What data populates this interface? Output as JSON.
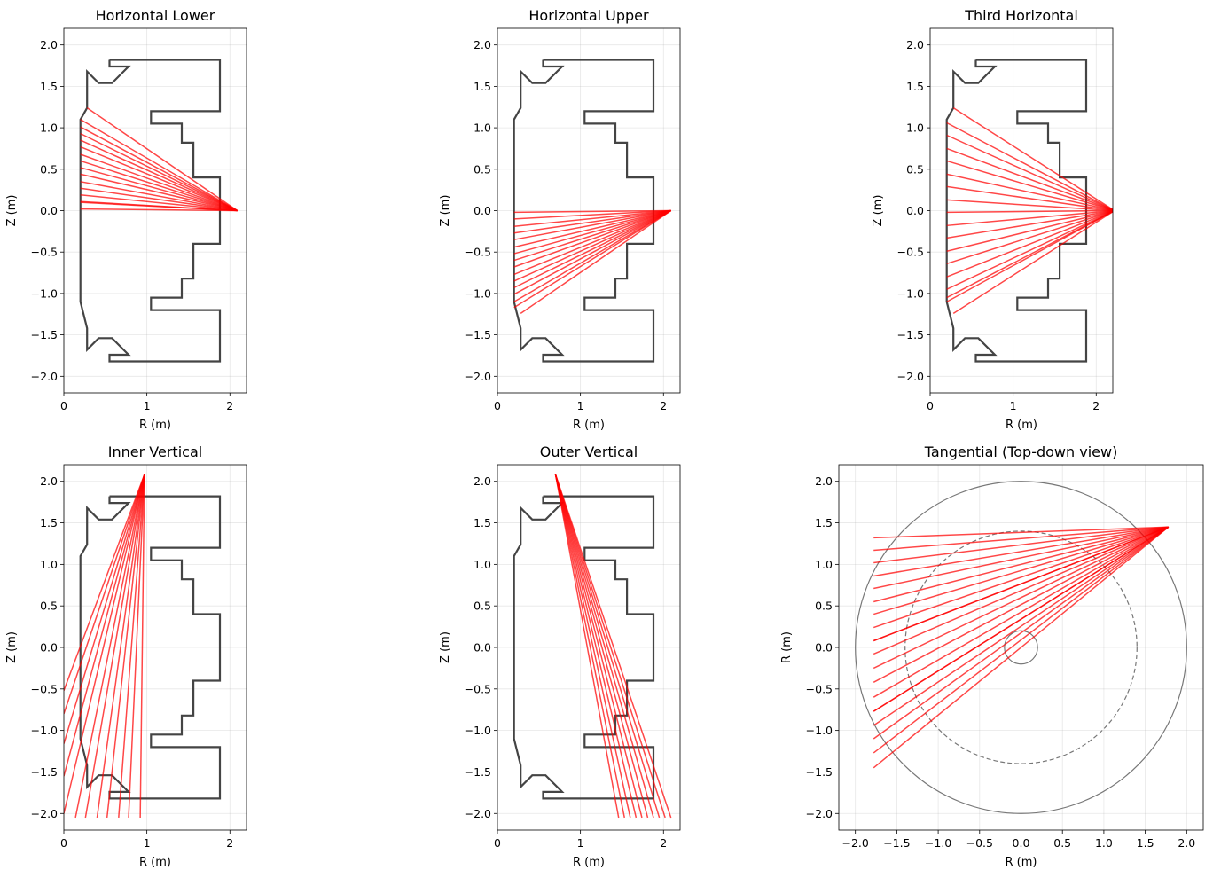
{
  "vessel_outline": {
    "r": [
      0.55,
      1.88,
      1.88,
      1.05,
      1.05,
      1.42,
      1.42,
      1.56,
      1.56,
      1.88,
      1.88,
      1.56,
      1.56,
      1.42,
      1.42,
      1.05,
      1.05,
      1.88,
      1.88,
      0.55,
      0.55,
      0.78,
      0.58,
      0.42,
      0.28,
      0.28,
      0.2,
      0.2,
      0.28,
      0.28,
      0.42,
      0.58,
      0.78,
      0.55,
      0.55
    ],
    "z": [
      1.82,
      1.82,
      1.2,
      1.2,
      1.05,
      1.05,
      0.82,
      0.82,
      0.4,
      0.4,
      -0.4,
      -0.4,
      -0.82,
      -0.82,
      -1.05,
      -1.05,
      -1.2,
      -1.2,
      -1.82,
      -1.82,
      -1.74,
      -1.74,
      -1.54,
      -1.54,
      -1.68,
      -1.42,
      -1.1,
      1.1,
      1.24,
      1.68,
      1.54,
      1.54,
      1.74,
      1.74,
      1.82
    ],
    "color": "#444444"
  },
  "ray_color": "#ff0000",
  "chart_data": [
    {
      "type": "line",
      "title": "Horizontal Lower",
      "xlabel": "R (m)",
      "ylabel": "Z (m)",
      "xlim": [
        0,
        2.2
      ],
      "ylim": [
        -2.2,
        2.2
      ],
      "xticks": [
        0,
        1,
        2
      ],
      "xtick_labels": [
        "0",
        "1",
        "2"
      ],
      "yticks": [
        2.0,
        1.5,
        1.0,
        0.5,
        0.0,
        -0.5,
        -1.0,
        -1.5,
        -2.0
      ],
      "ytick_labels": [
        "2.0",
        "1.5",
        "1.0",
        "0.5",
        "0.0",
        "−0.5",
        "−1.0",
        "−1.5",
        "−2.0"
      ],
      "grid": true,
      "show_vessel": true,
      "rays": {
        "origin": [
          2.09,
          0.0
        ],
        "end_r": [
          0.28,
          0.2,
          0.2,
          0.2,
          0.2,
          0.2,
          0.2,
          0.2,
          0.2,
          0.2,
          0.2,
          0.2,
          0.2,
          0.2,
          0.2,
          0.2
        ],
        "end_z": [
          1.24,
          1.1,
          1.01,
          0.93,
          0.85,
          0.77,
          0.68,
          0.6,
          0.52,
          0.44,
          0.35,
          0.27,
          0.19,
          0.11,
          0.02,
          0.1
        ]
      }
    },
    {
      "type": "line",
      "title": "Horizontal Upper",
      "xlabel": "R (m)",
      "ylabel": "Z (m)",
      "xlim": [
        0,
        2.2
      ],
      "ylim": [
        -2.2,
        2.2
      ],
      "xticks": [
        0,
        1,
        2
      ],
      "xtick_labels": [
        "0",
        "1",
        "2"
      ],
      "yticks": [
        2.0,
        1.5,
        1.0,
        0.5,
        0.0,
        -0.5,
        -1.0,
        -1.5,
        -2.0
      ],
      "ytick_labels": [
        "2.0",
        "1.5",
        "1.0",
        "0.5",
        "0.0",
        "−0.5",
        "−1.0",
        "−1.5",
        "−2.0"
      ],
      "grid": true,
      "show_vessel": true,
      "rays": {
        "origin": [
          2.09,
          0.0
        ],
        "end_r": [
          0.2,
          0.2,
          0.2,
          0.2,
          0.2,
          0.2,
          0.2,
          0.2,
          0.2,
          0.2,
          0.2,
          0.2,
          0.2,
          0.2,
          0.2,
          0.28
        ],
        "end_z": [
          -0.02,
          -0.1,
          -0.19,
          -0.27,
          -0.35,
          -0.44,
          -0.52,
          -0.6,
          -0.68,
          -0.77,
          -0.85,
          -0.93,
          -1.01,
          -1.1,
          -1.17,
          -1.24
        ]
      }
    },
    {
      "type": "line",
      "title": "Third Horizontal",
      "xlabel": "R (m)",
      "ylabel": "Z (m)",
      "xlim": [
        0,
        2.2
      ],
      "ylim": [
        -2.2,
        2.2
      ],
      "xticks": [
        0,
        1,
        2
      ],
      "xtick_labels": [
        "0",
        "1",
        "2"
      ],
      "yticks": [
        2.0,
        1.5,
        1.0,
        0.5,
        0.0,
        -0.5,
        -1.0,
        -1.5,
        -2.0
      ],
      "ytick_labels": [
        "2.0",
        "1.5",
        "1.0",
        "0.5",
        "0.0",
        "−0.5",
        "−1.0",
        "−1.5",
        "−2.0"
      ],
      "grid": true,
      "show_vessel": true,
      "rays": {
        "origin": [
          2.22,
          0.0
        ],
        "end_r": [
          0.28,
          0.2,
          0.2,
          0.2,
          0.2,
          0.2,
          0.2,
          0.2,
          0.2,
          0.2,
          0.2,
          0.2,
          0.2,
          0.2,
          0.2,
          0.2,
          0.2,
          0.28
        ],
        "end_z": [
          1.24,
          1.06,
          0.91,
          0.75,
          0.6,
          0.44,
          0.29,
          0.13,
          -0.02,
          -0.18,
          -0.33,
          -0.49,
          -0.64,
          -0.8,
          -0.95,
          -1.05,
          -1.1,
          -1.24
        ]
      }
    },
    {
      "type": "line",
      "title": "Inner Vertical",
      "xlabel": "R (m)",
      "ylabel": "Z (m)",
      "xlim": [
        0,
        2.2
      ],
      "ylim": [
        -2.2,
        2.2
      ],
      "xticks": [
        0,
        1,
        2
      ],
      "xtick_labels": [
        "0",
        "1",
        "2"
      ],
      "yticks": [
        2.0,
        1.5,
        1.0,
        0.5,
        0.0,
        -0.5,
        -1.0,
        -1.5,
        -2.0
      ],
      "ytick_labels": [
        "2.0",
        "1.5",
        "1.0",
        "0.5",
        "0.0",
        "−0.5",
        "−1.0",
        "−1.5",
        "−2.0"
      ],
      "grid": true,
      "show_vessel": true,
      "rays": {
        "origin": [
          0.97,
          2.08
        ],
        "end_r": [
          0.0,
          0.0,
          0.0,
          0.0,
          0.0,
          0.14,
          0.26,
          0.4,
          0.52,
          0.66,
          0.78,
          0.92
        ],
        "end_z": [
          -0.52,
          -0.8,
          -1.16,
          -1.55,
          -2.0,
          -2.05,
          -2.05,
          -2.05,
          -2.05,
          -2.05,
          -2.05,
          -2.05
        ]
      }
    },
    {
      "type": "line",
      "title": "Outer Vertical",
      "xlabel": "R (m)",
      "ylabel": "Z (m)",
      "xlim": [
        0,
        2.2
      ],
      "ylim": [
        -2.2,
        2.2
      ],
      "xticks": [
        0,
        1,
        2
      ],
      "xtick_labels": [
        "0",
        "1",
        "2"
      ],
      "yticks": [
        2.0,
        1.5,
        1.0,
        0.5,
        0.0,
        -0.5,
        -1.0,
        -1.5,
        -2.0
      ],
      "ytick_labels": [
        "2.0",
        "1.5",
        "1.0",
        "0.5",
        "0.0",
        "−0.5",
        "−1.0",
        "−1.5",
        "−2.0"
      ],
      "grid": true,
      "show_vessel": true,
      "rays": {
        "origin": [
          0.7,
          2.08
        ],
        "end_r": [
          1.46,
          1.53,
          1.6,
          1.67,
          1.74,
          1.81,
          1.88,
          1.95,
          2.02,
          2.09
        ],
        "end_z": [
          -2.05,
          -2.05,
          -2.05,
          -2.05,
          -2.05,
          -2.05,
          -2.05,
          -2.05,
          -2.05,
          -2.05
        ]
      }
    },
    {
      "type": "line",
      "title": "Tangential (Top-down view)",
      "xlabel": "R (m)",
      "ylabel": "R (m)",
      "xlim": [
        -2.2,
        2.2
      ],
      "ylim": [
        -2.2,
        2.2
      ],
      "xticks": [
        -2.0,
        -1.5,
        -1.0,
        -0.5,
        0.0,
        0.5,
        1.0,
        1.5,
        2.0
      ],
      "xtick_labels": [
        "−2.0",
        "−1.5",
        "−1.0",
        "−0.5",
        "0.0",
        "0.5",
        "1.0",
        "1.5",
        "2.0"
      ],
      "yticks": [
        2.0,
        1.5,
        1.0,
        0.5,
        0.0,
        -0.5,
        -1.0,
        -1.5,
        -2.0
      ],
      "ytick_labels": [
        "2.0",
        "1.5",
        "1.0",
        "0.5",
        "0.0",
        "−0.5",
        "−1.0",
        "−1.5",
        "−2.0"
      ],
      "grid": true,
      "show_vessel": false,
      "circles": [
        {
          "r": 2.0,
          "dashed": false
        },
        {
          "r": 1.4,
          "dashed": true
        },
        {
          "r": 0.2,
          "dashed": false
        }
      ],
      "rays": {
        "origin": [
          1.78,
          1.45
        ],
        "end_r": [
          -1.78,
          -1.78,
          -1.78,
          -1.78,
          -1.78,
          -1.78,
          -1.78,
          -1.78,
          -1.78,
          -1.78,
          -1.78,
          -1.78,
          -1.78,
          -1.78,
          -1.78,
          -1.78,
          -1.78,
          -1.78,
          -1.78,
          -1.78
        ],
        "end_z": [
          1.32,
          1.17,
          1.02,
          0.86,
          0.71,
          0.55,
          0.4,
          0.24,
          0.08,
          -0.08,
          -0.25,
          -0.42,
          -0.6,
          -0.77,
          -0.94,
          -1.1,
          -1.27,
          -1.45,
          -0.77,
          0.08
        ]
      }
    }
  ]
}
